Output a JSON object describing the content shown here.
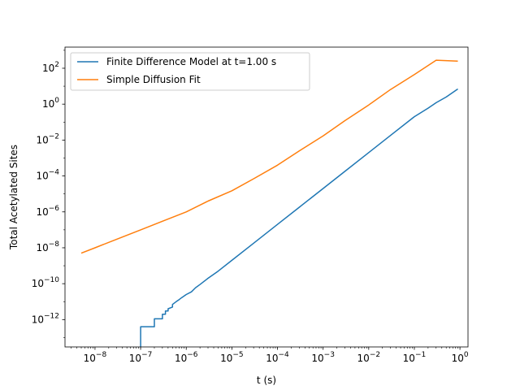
{
  "chart_data": {
    "type": "line",
    "title": "",
    "xlabel": "t (s)",
    "ylabel": "Total Acetylated Sites",
    "xscale": "log",
    "yscale": "log",
    "xlim": [
      2.2e-09,
      1.5
    ],
    "ylim": [
      3e-14,
      1500
    ],
    "grid": false,
    "legend_position": "top-left",
    "x_tick_labels": [
      {
        "value": 1e-08,
        "base": "10",
        "exp": "−8"
      },
      {
        "value": 1e-07,
        "base": "10",
        "exp": "−7"
      },
      {
        "value": 1e-06,
        "base": "10",
        "exp": "−6"
      },
      {
        "value": 1e-05,
        "base": "10",
        "exp": "−5"
      },
      {
        "value": 0.0001,
        "base": "10",
        "exp": "−4"
      },
      {
        "value": 0.001,
        "base": "10",
        "exp": "−3"
      },
      {
        "value": 0.01,
        "base": "10",
        "exp": "−2"
      },
      {
        "value": 0.1,
        "base": "10",
        "exp": "−1"
      },
      {
        "value": 1,
        "base": "10",
        "exp": "0"
      }
    ],
    "y_tick_labels": [
      {
        "value": 1e-12,
        "base": "10",
        "exp": "−12"
      },
      {
        "value": 1e-10,
        "base": "10",
        "exp": "−10"
      },
      {
        "value": 1e-08,
        "base": "10",
        "exp": "−8"
      },
      {
        "value": 1e-06,
        "base": "10",
        "exp": "−6"
      },
      {
        "value": 0.0001,
        "base": "10",
        "exp": "−4"
      },
      {
        "value": 0.01,
        "base": "10",
        "exp": "−2"
      },
      {
        "value": 1,
        "base": "10",
        "exp": "0"
      },
      {
        "value": 100,
        "base": "10",
        "exp": "2"
      }
    ],
    "series": [
      {
        "name": "Finite Difference Model at t=1.00 s",
        "color": "#1f77b4",
        "x": [
          1e-07,
          1e-07,
          1.5e-07,
          1.5e-07,
          2e-07,
          2e-07,
          2.5e-07,
          2.5e-07,
          3e-07,
          3e-07,
          3.5e-07,
          3.5e-07,
          4e-07,
          4e-07,
          5e-07,
          5e-07,
          6e-07,
          7e-07,
          8e-07,
          1e-06,
          1.3e-06,
          1.6e-06,
          2e-06,
          3e-06,
          5e-06,
          1e-05,
          3e-05,
          0.0001,
          0.0003,
          0.001,
          0.003,
          0.01,
          0.03,
          0.1,
          0.2,
          0.3,
          0.5,
          0.9
        ],
        "y": [
          3e-14,
          4e-13,
          4e-13,
          4e-13,
          4e-13,
          1.1e-12,
          1.1e-12,
          1.1e-12,
          1.1e-12,
          2e-12,
          2e-12,
          3e-12,
          3e-12,
          4e-12,
          5e-12,
          7e-12,
          1e-11,
          1.3e-11,
          1.7e-11,
          2.5e-11,
          3.5e-11,
          6e-11,
          9e-11,
          2e-10,
          5e-10,
          2e-09,
          1.8e-08,
          2e-07,
          1.8e-06,
          2e-05,
          0.00018,
          0.002,
          0.018,
          0.2,
          0.6,
          1.2,
          2.5,
          7
        ]
      },
      {
        "name": "Simple Diffusion Fit",
        "color": "#ff7f0e",
        "x": [
          5e-09,
          1e-08,
          3e-08,
          1e-07,
          3e-07,
          1e-06,
          3e-06,
          1e-05,
          3e-05,
          0.0001,
          0.0003,
          0.001,
          0.003,
          0.01,
          0.03,
          0.1,
          0.3,
          0.9
        ],
        "y": [
          5e-09,
          1e-08,
          3e-08,
          1e-07,
          3e-07,
          1e-06,
          4e-06,
          1.5e-05,
          7e-05,
          0.0004,
          0.0025,
          0.017,
          0.12,
          0.9,
          6.5,
          45,
          280,
          250
        ]
      }
    ]
  }
}
